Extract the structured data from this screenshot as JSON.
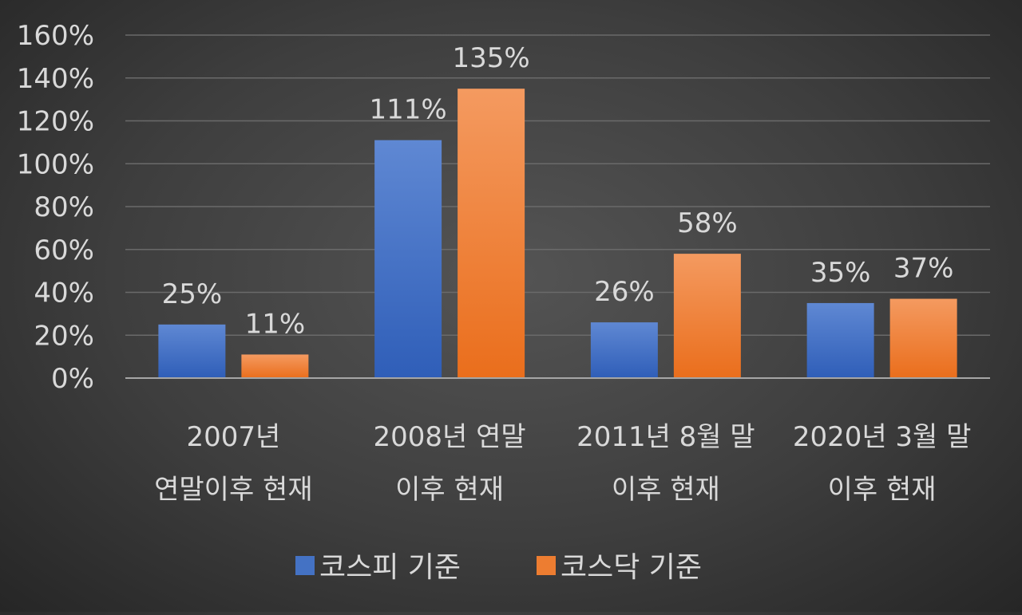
{
  "chart_data": {
    "type": "bar",
    "categories": [
      [
        "2007년",
        "연말이후 현재"
      ],
      [
        "2008년 연말",
        "이후 현재"
      ],
      [
        "2011년 8월 말",
        "이후 현재"
      ],
      [
        "2020년 3월 말",
        "이후 현재"
      ]
    ],
    "series": [
      {
        "name": "코스피 기준",
        "values": [
          25,
          111,
          26,
          35
        ],
        "labels": [
          "25%",
          "111%",
          "26%",
          "35%"
        ],
        "color": "#4472c4"
      },
      {
        "name": "코스닥 기준",
        "values": [
          11,
          135,
          58,
          37
        ],
        "labels": [
          "11%",
          "135%",
          "58%",
          "37%"
        ],
        "color": "#ed7d31"
      }
    ],
    "ylim": [
      0,
      160
    ],
    "yticks": [
      0,
      20,
      40,
      60,
      80,
      100,
      120,
      140,
      160
    ],
    "ytick_labels": [
      "0%",
      "20%",
      "40%",
      "60%",
      "80%",
      "100%",
      "120%",
      "140%",
      "160%"
    ],
    "grid": true,
    "legend_position": "bottom",
    "title": "",
    "xlabel": "",
    "ylabel": ""
  }
}
